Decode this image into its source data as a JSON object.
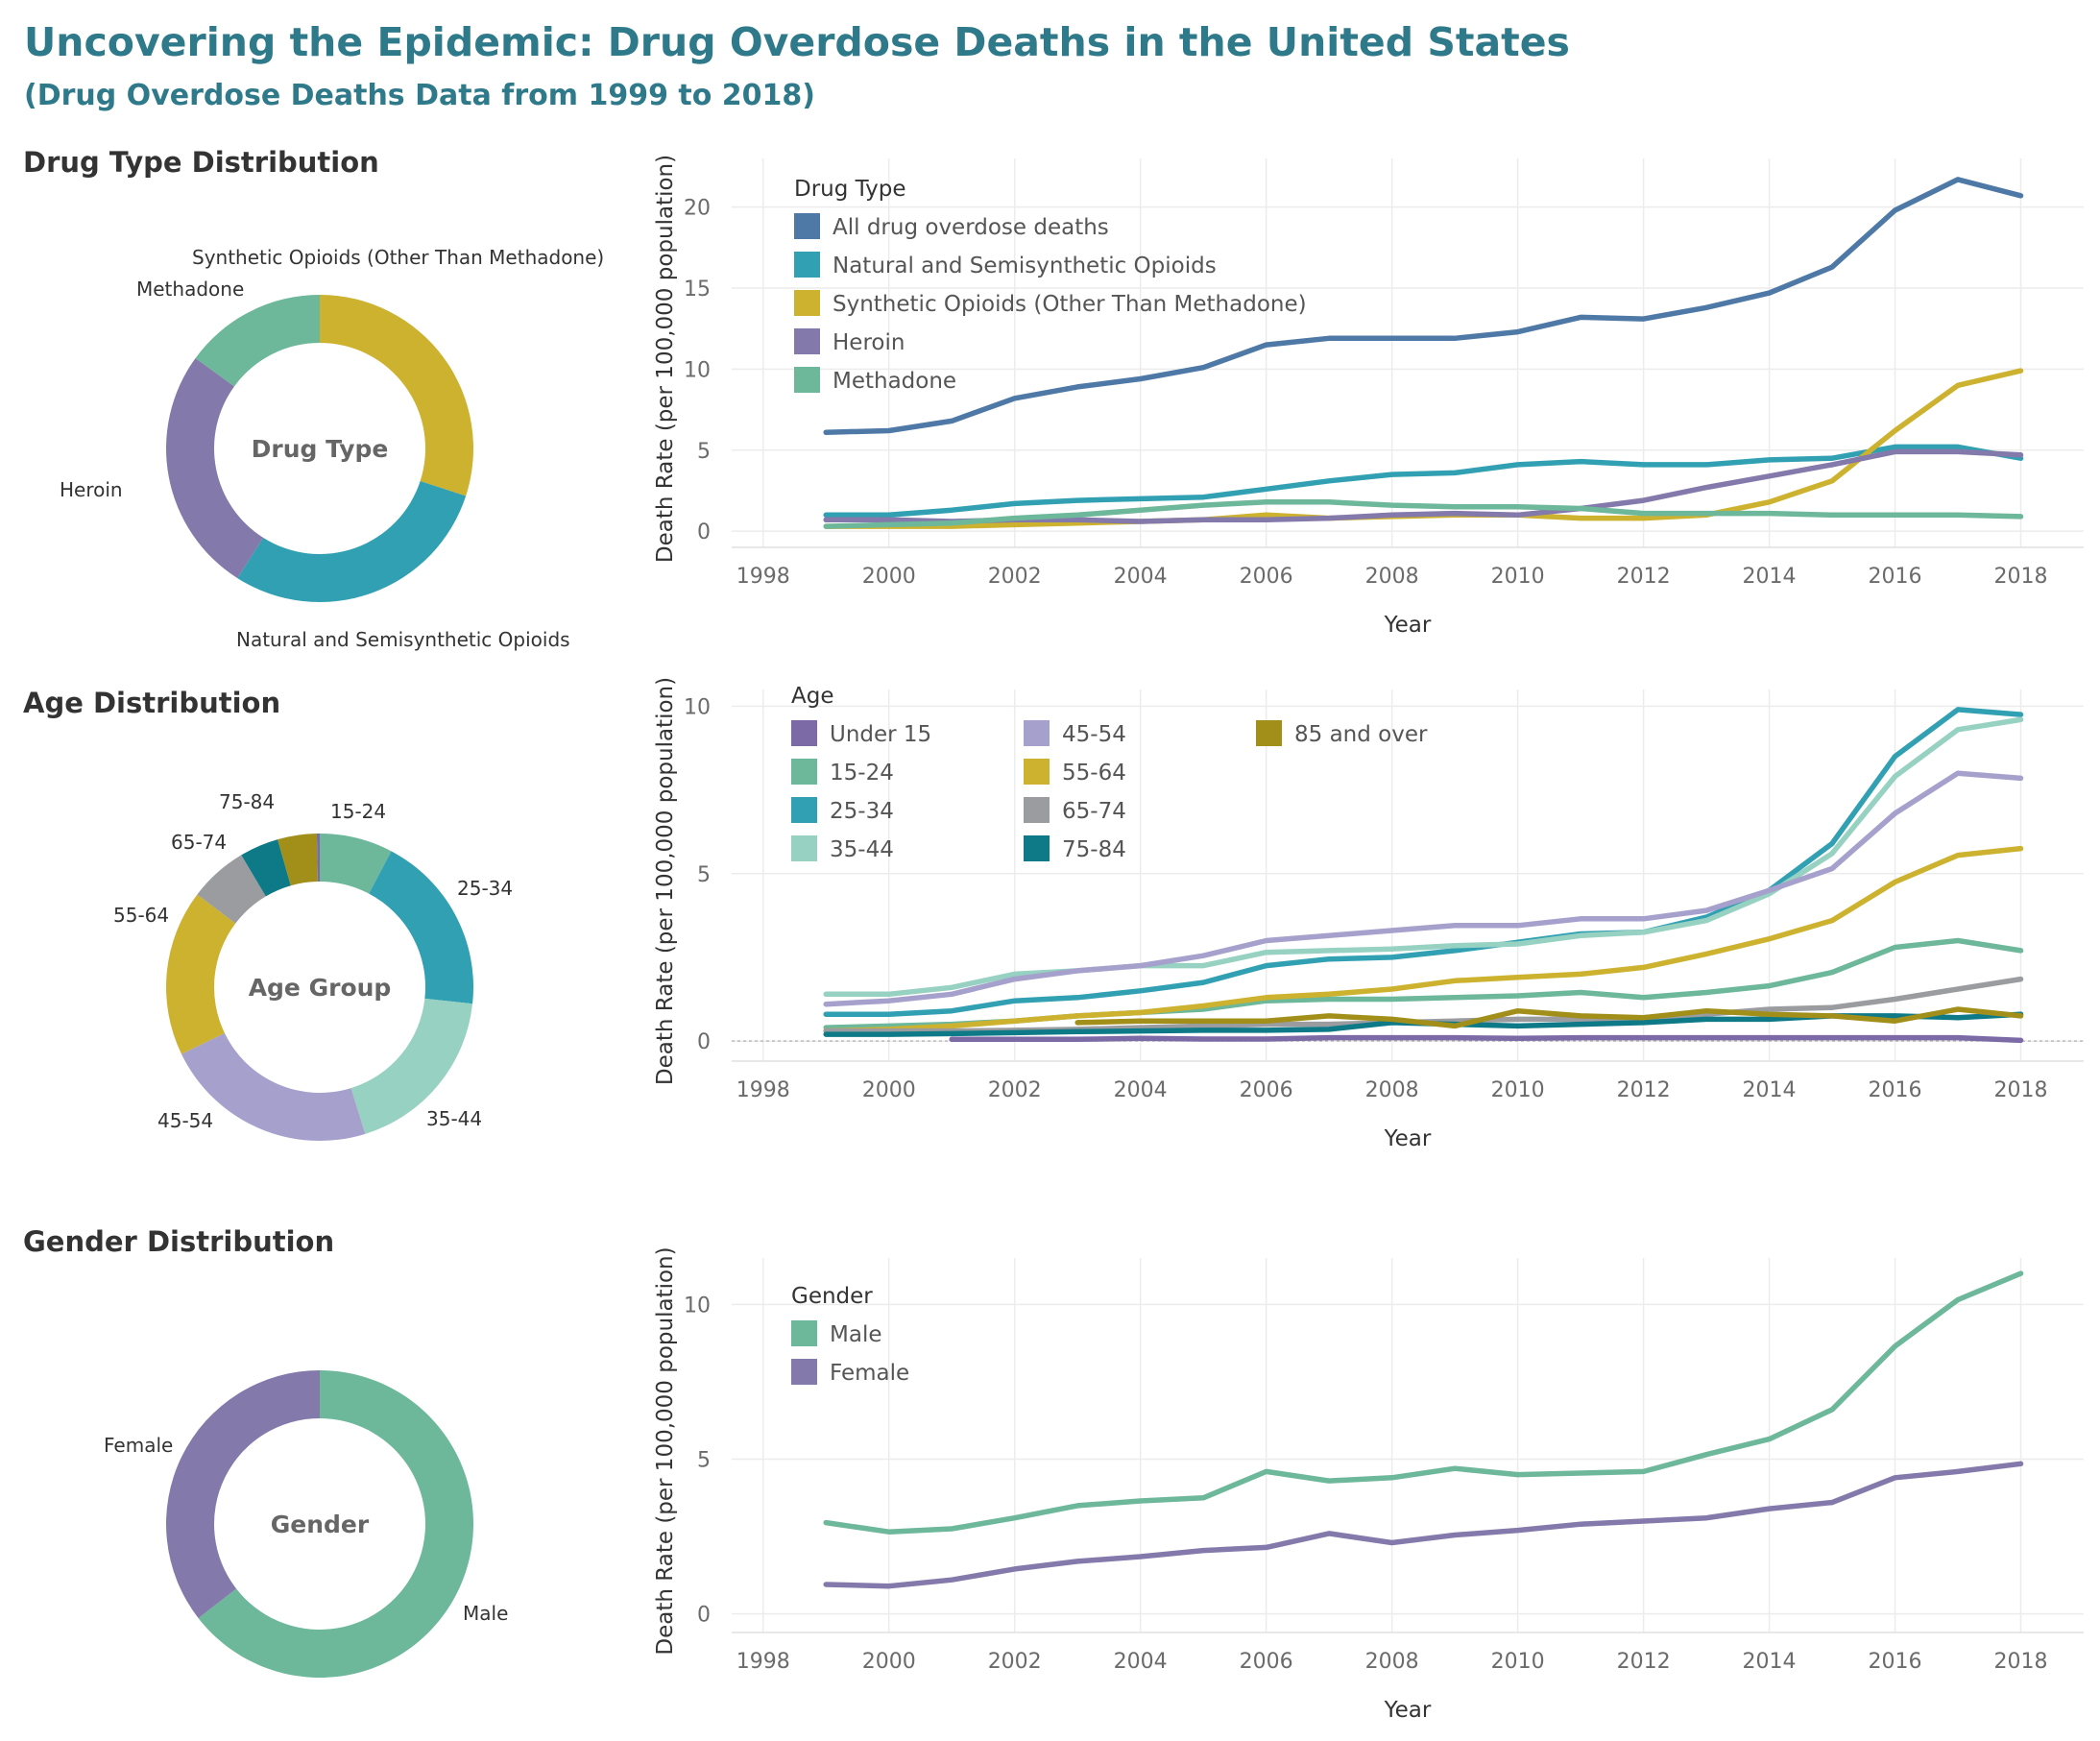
{
  "title": "Uncovering the Epidemic: Drug Overdose Deaths in the United States",
  "subtitle": "(Drug Overdose Deaths Data from 1999 to 2018)",
  "sections": [
    {
      "title": "Drug Type Distribution"
    },
    {
      "title": "Age Distribution"
    },
    {
      "title": "Gender Distribution"
    }
  ],
  "chart_data": [
    {
      "type": "pie",
      "subtype": "donut",
      "center_label": "Drug Type",
      "slices": [
        {
          "label": "Synthetic Opioids (Other Than Methadone)",
          "value": 30,
          "color": "#cdb22f"
        },
        {
          "label": "Natural and Semisynthetic Opioids",
          "value": 29,
          "color": "#31a0b2"
        },
        {
          "label": "Heroin",
          "value": 26,
          "color": "#8479ab"
        },
        {
          "label": "Methadone",
          "value": 15,
          "color": "#6db79a"
        }
      ]
    },
    {
      "type": "line",
      "xlabel": "Year",
      "ylabel": "Death Rate (per 100,000 population)",
      "xlim": [
        1997.5,
        2019
      ],
      "ylim": [
        -1,
        23
      ],
      "xticks": [
        1998,
        2000,
        2002,
        2004,
        2006,
        2008,
        2010,
        2012,
        2014,
        2016,
        2018
      ],
      "yticks": [
        0,
        5,
        10,
        15,
        20
      ],
      "legend_title": "Drug Type",
      "legend_position": "top-left",
      "x": [
        1999,
        2000,
        2001,
        2002,
        2003,
        2004,
        2005,
        2006,
        2007,
        2008,
        2009,
        2010,
        2011,
        2012,
        2013,
        2014,
        2015,
        2016,
        2017,
        2018
      ],
      "series": [
        {
          "name": "All drug overdose deaths",
          "color": "#4e79a7",
          "values": [
            6.1,
            6.2,
            6.8,
            8.2,
            8.9,
            9.4,
            10.1,
            11.5,
            11.9,
            11.9,
            11.9,
            12.3,
            13.2,
            13.1,
            13.8,
            14.7,
            16.3,
            19.8,
            21.7,
            20.7
          ]
        },
        {
          "name": "Natural and Semisynthetic Opioids",
          "color": "#31a0b2",
          "values": [
            1.0,
            1.0,
            1.3,
            1.7,
            1.9,
            2.0,
            2.1,
            2.6,
            3.1,
            3.5,
            3.6,
            4.1,
            4.3,
            4.1,
            4.1,
            4.4,
            4.5,
            5.2,
            5.2,
            4.5
          ]
        },
        {
          "name": "Synthetic Opioids (Other Than Methadone)",
          "color": "#cdb22f",
          "values": [
            0.3,
            0.3,
            0.3,
            0.4,
            0.5,
            0.6,
            0.7,
            1.0,
            0.8,
            0.9,
            1.0,
            1.0,
            0.8,
            0.8,
            1.0,
            1.8,
            3.1,
            6.2,
            9.0,
            9.9
          ]
        },
        {
          "name": "Heroin",
          "color": "#8479ab",
          "values": [
            0.7,
            0.7,
            0.6,
            0.7,
            0.7,
            0.6,
            0.7,
            0.7,
            0.8,
            1.0,
            1.1,
            1.0,
            1.4,
            1.9,
            2.7,
            3.4,
            4.1,
            4.9,
            4.9,
            4.7
          ]
        },
        {
          "name": "Methadone",
          "color": "#6db79a",
          "values": [
            0.3,
            0.4,
            0.5,
            0.8,
            1.0,
            1.3,
            1.6,
            1.8,
            1.8,
            1.6,
            1.5,
            1.5,
            1.4,
            1.1,
            1.1,
            1.1,
            1.0,
            1.0,
            1.0,
            0.9
          ]
        }
      ]
    },
    {
      "type": "pie",
      "subtype": "donut",
      "center_label": "Age Group",
      "slices": [
        {
          "label": "15-24",
          "value": 7.5,
          "color": "#6db79a"
        },
        {
          "label": "25-34",
          "value": 18.5,
          "color": "#31a0b2"
        },
        {
          "label": "35-44",
          "value": 18,
          "color": "#96d1c1"
        },
        {
          "label": "45-54",
          "value": 22,
          "color": "#a6a0cc"
        },
        {
          "label": "55-64",
          "value": 17,
          "color": "#cdb22f"
        },
        {
          "label": "65-74",
          "value": 6,
          "color": "#9a9c9f"
        },
        {
          "label": "75-84",
          "value": 4,
          "color": "#0e7a87"
        },
        {
          "label": "85 and over",
          "value": 4,
          "color": "#a18f1a"
        },
        {
          "label": "Under 15",
          "value": 0.3,
          "color": "#7b6aa6"
        }
      ]
    },
    {
      "type": "line",
      "xlabel": "Year",
      "ylabel": "Death Rate (per 100,000 population)",
      "xlim": [
        1997.5,
        2019
      ],
      "ylim": [
        -0.6,
        10.5
      ],
      "xticks": [
        1998,
        2000,
        2002,
        2004,
        2006,
        2008,
        2010,
        2012,
        2014,
        2016,
        2018
      ],
      "yticks": [
        0,
        5,
        10
      ],
      "legend_title": "Age",
      "legend_position": "top-left",
      "x": [
        1999,
        2000,
        2001,
        2002,
        2003,
        2004,
        2005,
        2006,
        2007,
        2008,
        2009,
        2010,
        2011,
        2012,
        2013,
        2014,
        2015,
        2016,
        2017,
        2018
      ],
      "series": [
        {
          "name": "Under 15",
          "color": "#7b6aa6",
          "values": [
            null,
            null,
            0.05,
            0.05,
            0.05,
            0.08,
            0.06,
            0.06,
            0.1,
            0.1,
            0.1,
            0.08,
            0.1,
            0.1,
            0.1,
            0.1,
            0.1,
            0.1,
            0.1,
            0.02
          ]
        },
        {
          "name": "15-24",
          "color": "#6db79a",
          "values": [
            0.4,
            0.45,
            0.5,
            0.6,
            0.75,
            0.85,
            0.95,
            1.2,
            1.25,
            1.25,
            1.3,
            1.35,
            1.45,
            1.3,
            1.45,
            1.65,
            2.05,
            2.8,
            3.0,
            2.7
          ]
        },
        {
          "name": "25-34",
          "color": "#31a0b2",
          "values": [
            0.8,
            0.8,
            0.9,
            1.2,
            1.3,
            1.5,
            1.75,
            2.25,
            2.45,
            2.5,
            2.7,
            2.95,
            3.2,
            3.25,
            3.7,
            4.5,
            5.9,
            8.5,
            9.9,
            9.75
          ]
        },
        {
          "name": "35-44",
          "color": "#96d1c1",
          "values": [
            1.4,
            1.4,
            1.6,
            2.0,
            2.1,
            2.25,
            2.25,
            2.65,
            2.7,
            2.75,
            2.85,
            2.9,
            3.15,
            3.25,
            3.6,
            4.4,
            5.6,
            7.9,
            9.3,
            9.6
          ]
        },
        {
          "name": "45-54",
          "color": "#a6a0cc",
          "values": [
            1.1,
            1.2,
            1.4,
            1.85,
            2.1,
            2.25,
            2.55,
            3.0,
            3.15,
            3.3,
            3.45,
            3.45,
            3.65,
            3.65,
            3.9,
            4.5,
            5.15,
            6.8,
            8.0,
            7.85
          ]
        },
        {
          "name": "55-64",
          "color": "#cdb22f",
          "values": [
            0.3,
            0.35,
            0.45,
            0.6,
            0.75,
            0.85,
            1.05,
            1.3,
            1.4,
            1.55,
            1.8,
            1.9,
            2.0,
            2.2,
            2.6,
            3.05,
            3.6,
            4.75,
            5.55,
            5.75
          ]
        },
        {
          "name": "65-74",
          "color": "#9a9c9f",
          "values": [
            0.3,
            0.3,
            0.3,
            0.32,
            0.35,
            0.4,
            0.45,
            0.5,
            0.5,
            0.55,
            0.6,
            0.65,
            0.65,
            0.7,
            0.8,
            0.95,
            1.0,
            1.25,
            1.55,
            1.85
          ]
        },
        {
          "name": "75-84",
          "color": "#0e7a87",
          "values": [
            0.2,
            0.2,
            0.22,
            0.25,
            0.28,
            0.3,
            0.32,
            0.32,
            0.35,
            0.55,
            0.5,
            0.45,
            0.5,
            0.55,
            0.65,
            0.65,
            0.75,
            0.75,
            0.7,
            0.8
          ]
        },
        {
          "name": "85 and over",
          "color": "#a18f1a",
          "values": [
            null,
            null,
            null,
            null,
            0.55,
            0.6,
            0.6,
            0.6,
            0.75,
            0.65,
            0.45,
            0.9,
            0.75,
            0.7,
            0.9,
            0.8,
            0.75,
            0.6,
            0.95,
            0.75
          ]
        }
      ]
    },
    {
      "type": "pie",
      "subtype": "donut",
      "center_label": "Gender",
      "slices": [
        {
          "label": "Male",
          "value": 64.5,
          "color": "#6db79a"
        },
        {
          "label": "Female",
          "value": 35.5,
          "color": "#8479ab"
        }
      ]
    },
    {
      "type": "line",
      "xlabel": "Year",
      "ylabel": "Death Rate (per 100,000 population)",
      "xlim": [
        1997.5,
        2019
      ],
      "ylim": [
        -0.6,
        11.5
      ],
      "xticks": [
        1998,
        2000,
        2002,
        2004,
        2006,
        2008,
        2010,
        2012,
        2014,
        2016,
        2018
      ],
      "yticks": [
        0,
        5,
        10
      ],
      "legend_title": "Gender",
      "legend_position": "top-left",
      "x": [
        1999,
        2000,
        2001,
        2002,
        2003,
        2004,
        2005,
        2006,
        2007,
        2008,
        2009,
        2010,
        2011,
        2012,
        2013,
        2014,
        2015,
        2016,
        2017,
        2018
      ],
      "series": [
        {
          "name": "Male",
          "color": "#6db79a",
          "values": [
            2.95,
            2.65,
            2.75,
            3.1,
            3.5,
            3.65,
            3.75,
            4.6,
            4.3,
            4.4,
            4.7,
            4.5,
            4.55,
            4.6,
            5.15,
            5.65,
            6.6,
            8.65,
            10.15,
            11.0
          ]
        },
        {
          "name": "Female",
          "color": "#8479ab",
          "values": [
            0.95,
            0.9,
            1.1,
            1.45,
            1.7,
            1.85,
            2.05,
            2.15,
            2.6,
            2.3,
            2.55,
            2.7,
            2.9,
            3.0,
            3.1,
            3.4,
            3.6,
            4.4,
            4.6,
            4.85
          ]
        }
      ]
    }
  ]
}
